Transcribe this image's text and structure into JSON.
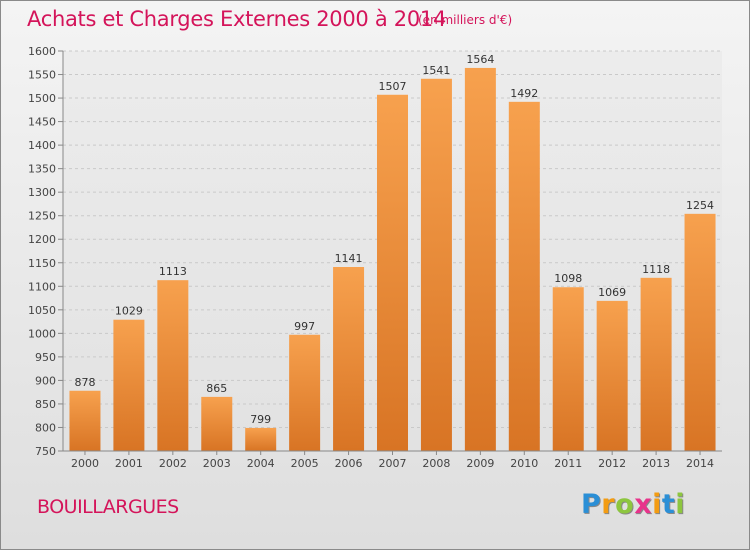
{
  "title": "Achats et Charges Externes 2000 à 2014",
  "subtitle": "(en milliers d'€)",
  "place": "BOUILLARGUES",
  "logo": {
    "letters": [
      "P",
      "r",
      "o",
      "x",
      "i",
      "t",
      "i"
    ],
    "colors": [
      "#2b8fd6",
      "#f39c12",
      "#8dc63f",
      "#e8348b",
      "#f39c12",
      "#2b8fd6",
      "#8dc63f"
    ]
  },
  "colors": {
    "bar_top": "#f7a14e",
    "bar_bottom": "#d87424",
    "title": "#d4145a"
  },
  "chart_data": {
    "type": "bar",
    "categories": [
      "2000",
      "2001",
      "2002",
      "2003",
      "2004",
      "2005",
      "2006",
      "2007",
      "2008",
      "2009",
      "2010",
      "2011",
      "2012",
      "2013",
      "2014"
    ],
    "values": [
      878,
      1029,
      1113,
      865,
      799,
      997,
      1141,
      1507,
      1541,
      1564,
      1492,
      1098,
      1069,
      1118,
      1254
    ],
    "ylim": [
      750,
      1600
    ],
    "yticks": [
      750,
      800,
      850,
      900,
      950,
      1000,
      1050,
      1100,
      1150,
      1200,
      1250,
      1300,
      1350,
      1400,
      1450,
      1500,
      1550,
      1600
    ],
    "grid": true,
    "xlabel": "",
    "ylabel": ""
  }
}
